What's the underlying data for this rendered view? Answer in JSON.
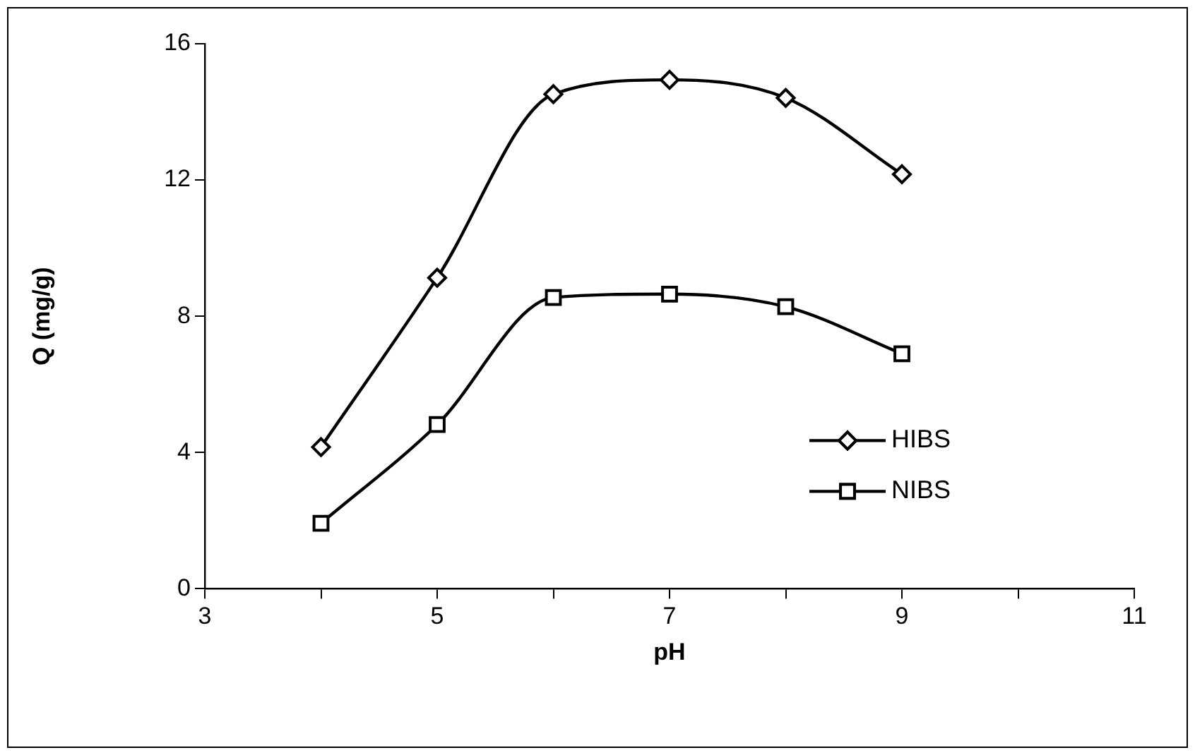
{
  "chart_data": {
    "type": "line",
    "xlabel": "pH",
    "ylabel": "Q (mg/g)",
    "x": [
      4,
      5,
      6,
      7,
      8,
      9
    ],
    "series": [
      {
        "name": "HIBS",
        "color": "#000000",
        "marker": "diamond",
        "values": [
          4.16,
          9.13,
          14.52,
          14.94,
          14.41,
          12.17
        ]
      },
      {
        "name": "NIBS",
        "color": "#000000",
        "marker": "square",
        "values": [
          1.92,
          4.82,
          8.55,
          8.65,
          8.28,
          6.9
        ]
      }
    ],
    "xlim": [
      3,
      11
    ],
    "xticks": [
      3,
      {
        "value": 4,
        "label": null
      },
      5,
      {
        "value": 6,
        "label": null
      },
      7,
      {
        "value": 8,
        "label": null
      },
      9,
      {
        "value": 10,
        "label": null
      },
      11
    ],
    "ylim": [
      0,
      16
    ],
    "yticks": [
      0,
      4,
      8,
      12,
      16
    ],
    "grid": false,
    "legend": "bottom right",
    "line_style": "solid"
  }
}
